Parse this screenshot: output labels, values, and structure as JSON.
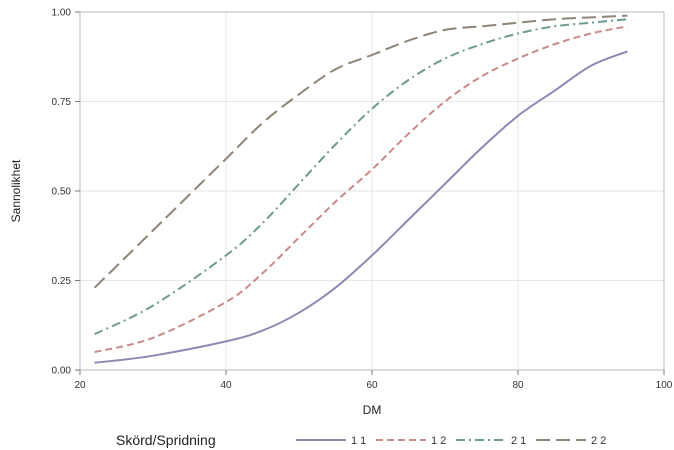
{
  "chart_data": {
    "type": "line",
    "xlabel": "DM",
    "ylabel": "Sannolikhet",
    "xlim": [
      20,
      100
    ],
    "ylim": [
      0,
      1
    ],
    "x_ticks": [
      "20",
      "40",
      "60",
      "80",
      "100"
    ],
    "y_ticks": [
      "0.00",
      "0.25",
      "0.50",
      "0.75",
      "1.00"
    ],
    "grid": true,
    "legend": {
      "title": "Skörd/Spridning",
      "placement": "bottom"
    },
    "series": [
      {
        "name": "1 1",
        "color": "#8a8ab4",
        "dash": "solid",
        "x": [
          22,
          30,
          40,
          45,
          50,
          55,
          60,
          65,
          70,
          75,
          80,
          85,
          90,
          95
        ],
        "y": [
          0.02,
          0.04,
          0.08,
          0.11,
          0.16,
          0.23,
          0.32,
          0.42,
          0.52,
          0.62,
          0.71,
          0.78,
          0.85,
          0.89
        ]
      },
      {
        "name": "1 2",
        "color": "#c98a8a",
        "dash": "dash",
        "x": [
          22,
          30,
          40,
          45,
          50,
          55,
          60,
          65,
          70,
          75,
          80,
          85,
          90,
          95
        ],
        "y": [
          0.05,
          0.09,
          0.19,
          0.27,
          0.37,
          0.47,
          0.56,
          0.66,
          0.75,
          0.82,
          0.87,
          0.91,
          0.94,
          0.96
        ]
      },
      {
        "name": "2 1",
        "color": "#6e9a90",
        "dash": "dashdot",
        "x": [
          22,
          30,
          40,
          45,
          50,
          55,
          60,
          65,
          70,
          75,
          80,
          85,
          90,
          95
        ],
        "y": [
          0.1,
          0.18,
          0.32,
          0.41,
          0.52,
          0.63,
          0.73,
          0.81,
          0.87,
          0.91,
          0.94,
          0.96,
          0.97,
          0.98
        ]
      },
      {
        "name": "2 2",
        "color": "#8f8576",
        "dash": "longdash",
        "x": [
          22,
          30,
          40,
          45,
          50,
          55,
          60,
          65,
          70,
          75,
          80,
          85,
          90,
          95
        ],
        "y": [
          0.23,
          0.39,
          0.59,
          0.69,
          0.77,
          0.84,
          0.88,
          0.92,
          0.95,
          0.96,
          0.97,
          0.98,
          0.985,
          0.99
        ]
      }
    ]
  }
}
